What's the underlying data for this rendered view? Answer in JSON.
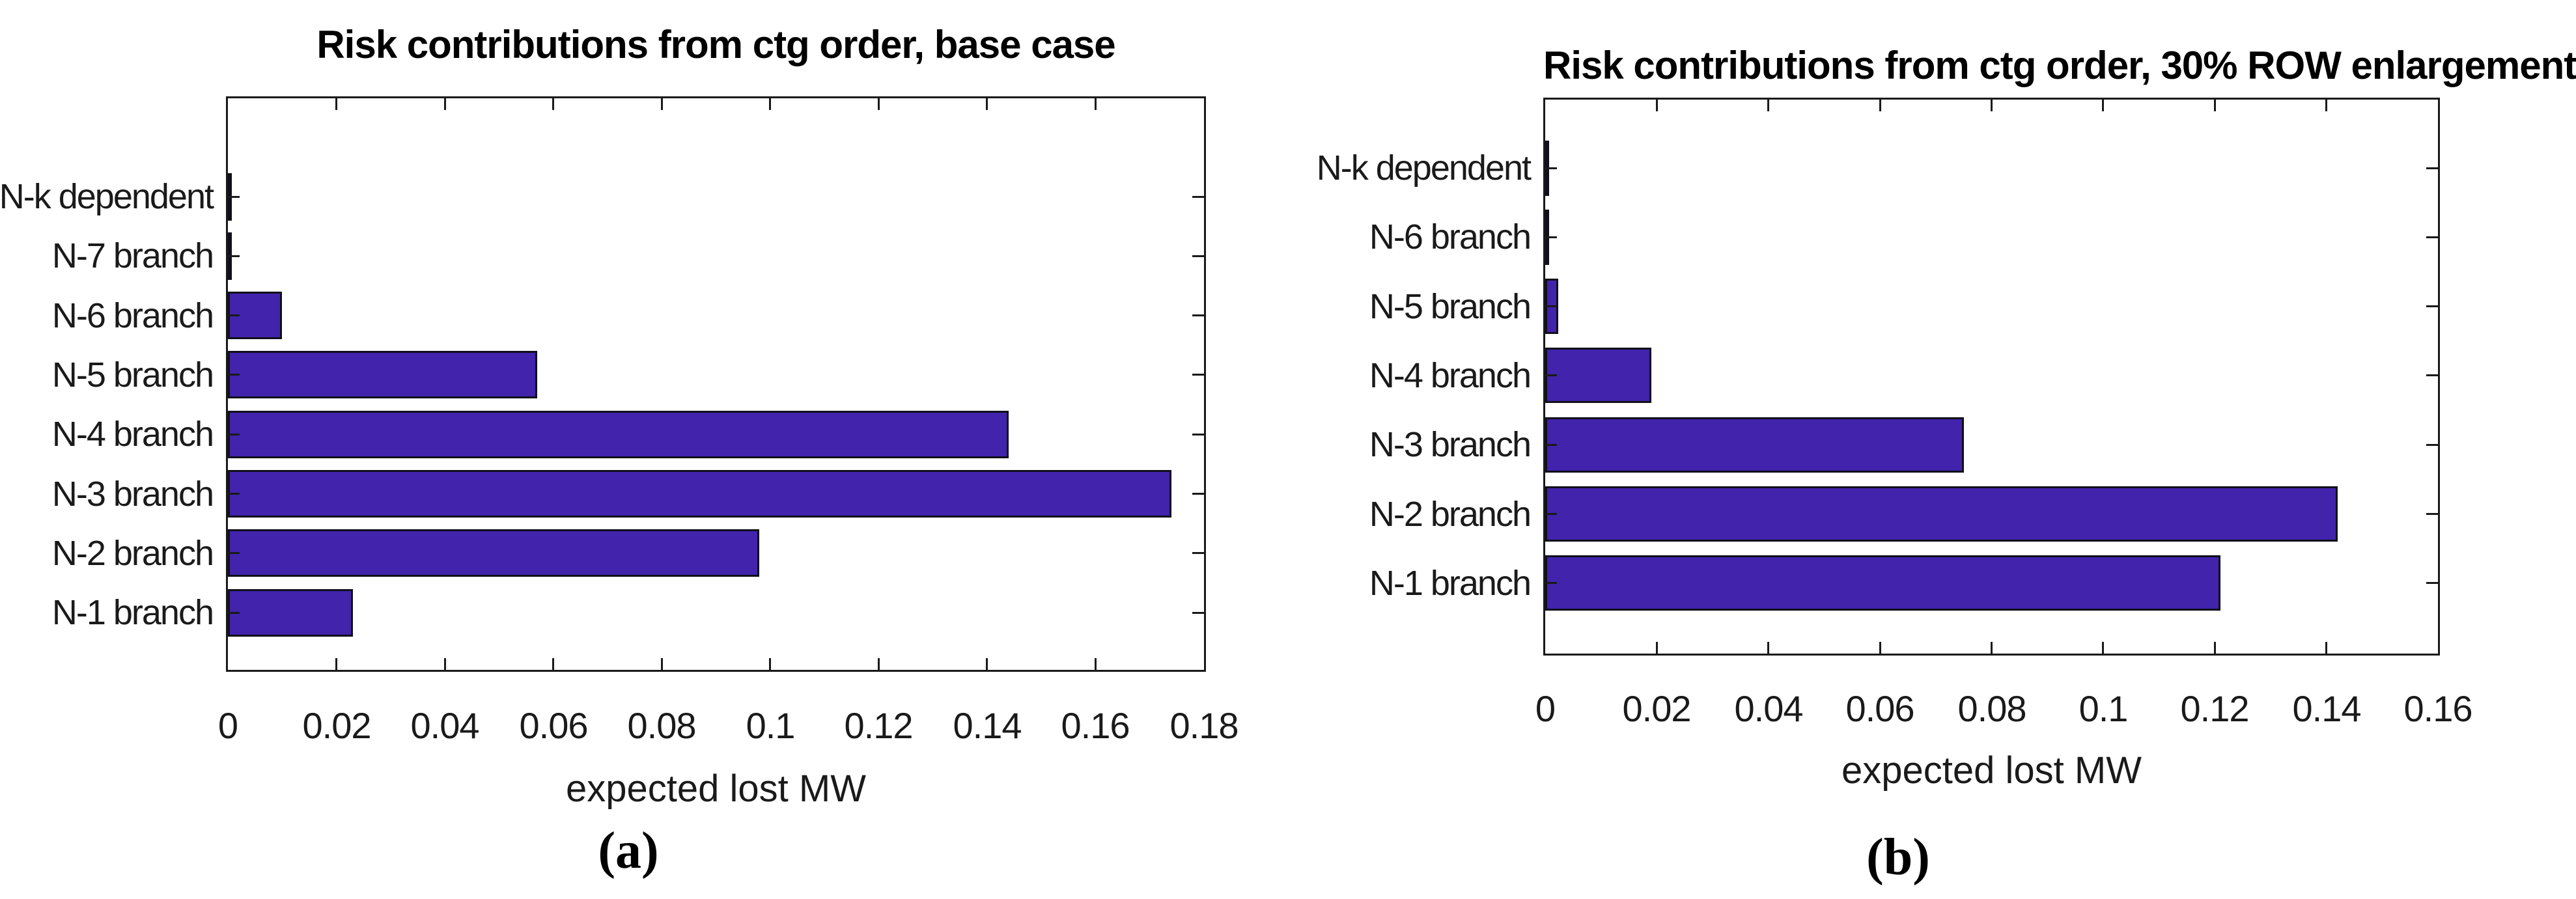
{
  "page": {
    "background": "#ffffff"
  },
  "chart_data": [
    {
      "type": "bar",
      "orientation": "horizontal",
      "title": "Risk contributions from ctg order, base case",
      "xlabel": "expected lost MW",
      "caption": "(a)",
      "categories_top_to_bottom": [
        "N-k dependent",
        "N-7 branch",
        "N-6 branch",
        "N-5 branch",
        "N-4 branch",
        "N-3 branch",
        "N-2 branch",
        "N-1 branch"
      ],
      "values_top_to_bottom": [
        0.0002,
        0.0007,
        0.01,
        0.057,
        0.144,
        0.174,
        0.098,
        0.023
      ],
      "xlim": [
        0,
        0.18
      ],
      "xticks": [
        0,
        0.02,
        0.04,
        0.06,
        0.08,
        0.1,
        0.12,
        0.14,
        0.16,
        0.18
      ],
      "xtick_labels": [
        "0",
        "0.02",
        "0.04",
        "0.06",
        "0.08",
        "0.1",
        "0.12",
        "0.14",
        "0.16",
        "0.18"
      ],
      "grid": false,
      "legend": "none",
      "bar_width_fraction": 0.8,
      "bar_color": "#4123ac",
      "bar_edge_color": "#10101a",
      "axis_color": "#1a1a1a"
    },
    {
      "type": "bar",
      "orientation": "horizontal",
      "title": "Risk contributions from ctg order, 30% ROW enlargement",
      "xlabel": "expected lost MW",
      "caption": "(b)",
      "categories_top_to_bottom": [
        "N-k dependent",
        "N-6 branch",
        "N-5 branch",
        "N-4 branch",
        "N-3 branch",
        "N-2 branch",
        "N-1 branch"
      ],
      "values_top_to_bottom": [
        0.0002,
        0.0002,
        0.0023,
        0.019,
        0.075,
        0.142,
        0.121
      ],
      "xlim": [
        0,
        0.16
      ],
      "xticks": [
        0,
        0.02,
        0.04,
        0.06,
        0.08,
        0.1,
        0.12,
        0.14,
        0.16
      ],
      "xtick_labels": [
        "0",
        "0.02",
        "0.04",
        "0.06",
        "0.08",
        "0.1",
        "0.12",
        "0.14",
        "0.16"
      ],
      "grid": false,
      "legend": "none",
      "bar_width_fraction": 0.8,
      "bar_color": "#4123ac",
      "bar_edge_color": "#10101a",
      "axis_color": "#1a1a1a"
    }
  ]
}
